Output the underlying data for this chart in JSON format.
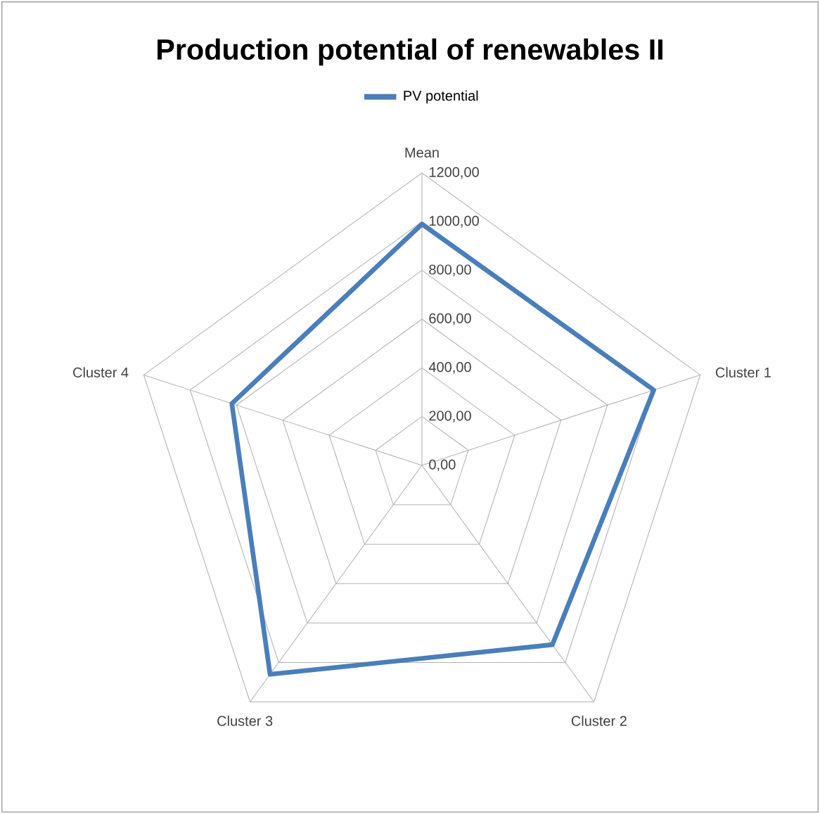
{
  "chart_data": {
    "type": "radar",
    "title": "Production potential of renewables II",
    "categories": [
      "Mean",
      "Cluster 1",
      "Cluster 2",
      "Cluster 3",
      "Cluster 4"
    ],
    "series": [
      {
        "name": "PV potential",
        "color": "#4a7ebb",
        "values": [
          990,
          1000,
          910,
          1060,
          820
        ]
      }
    ],
    "ylim": [
      0,
      1200
    ],
    "yticks": [
      {
        "value": 0,
        "label": "0,00"
      },
      {
        "value": 200,
        "label": "200,00"
      },
      {
        "value": 400,
        "label": "400,00"
      },
      {
        "value": 600,
        "label": "600,00"
      },
      {
        "value": 800,
        "label": "800,00"
      },
      {
        "value": 1000,
        "label": "1000,00"
      },
      {
        "value": 1200,
        "label": "1200,00"
      }
    ],
    "grid": true,
    "legend": "top"
  }
}
